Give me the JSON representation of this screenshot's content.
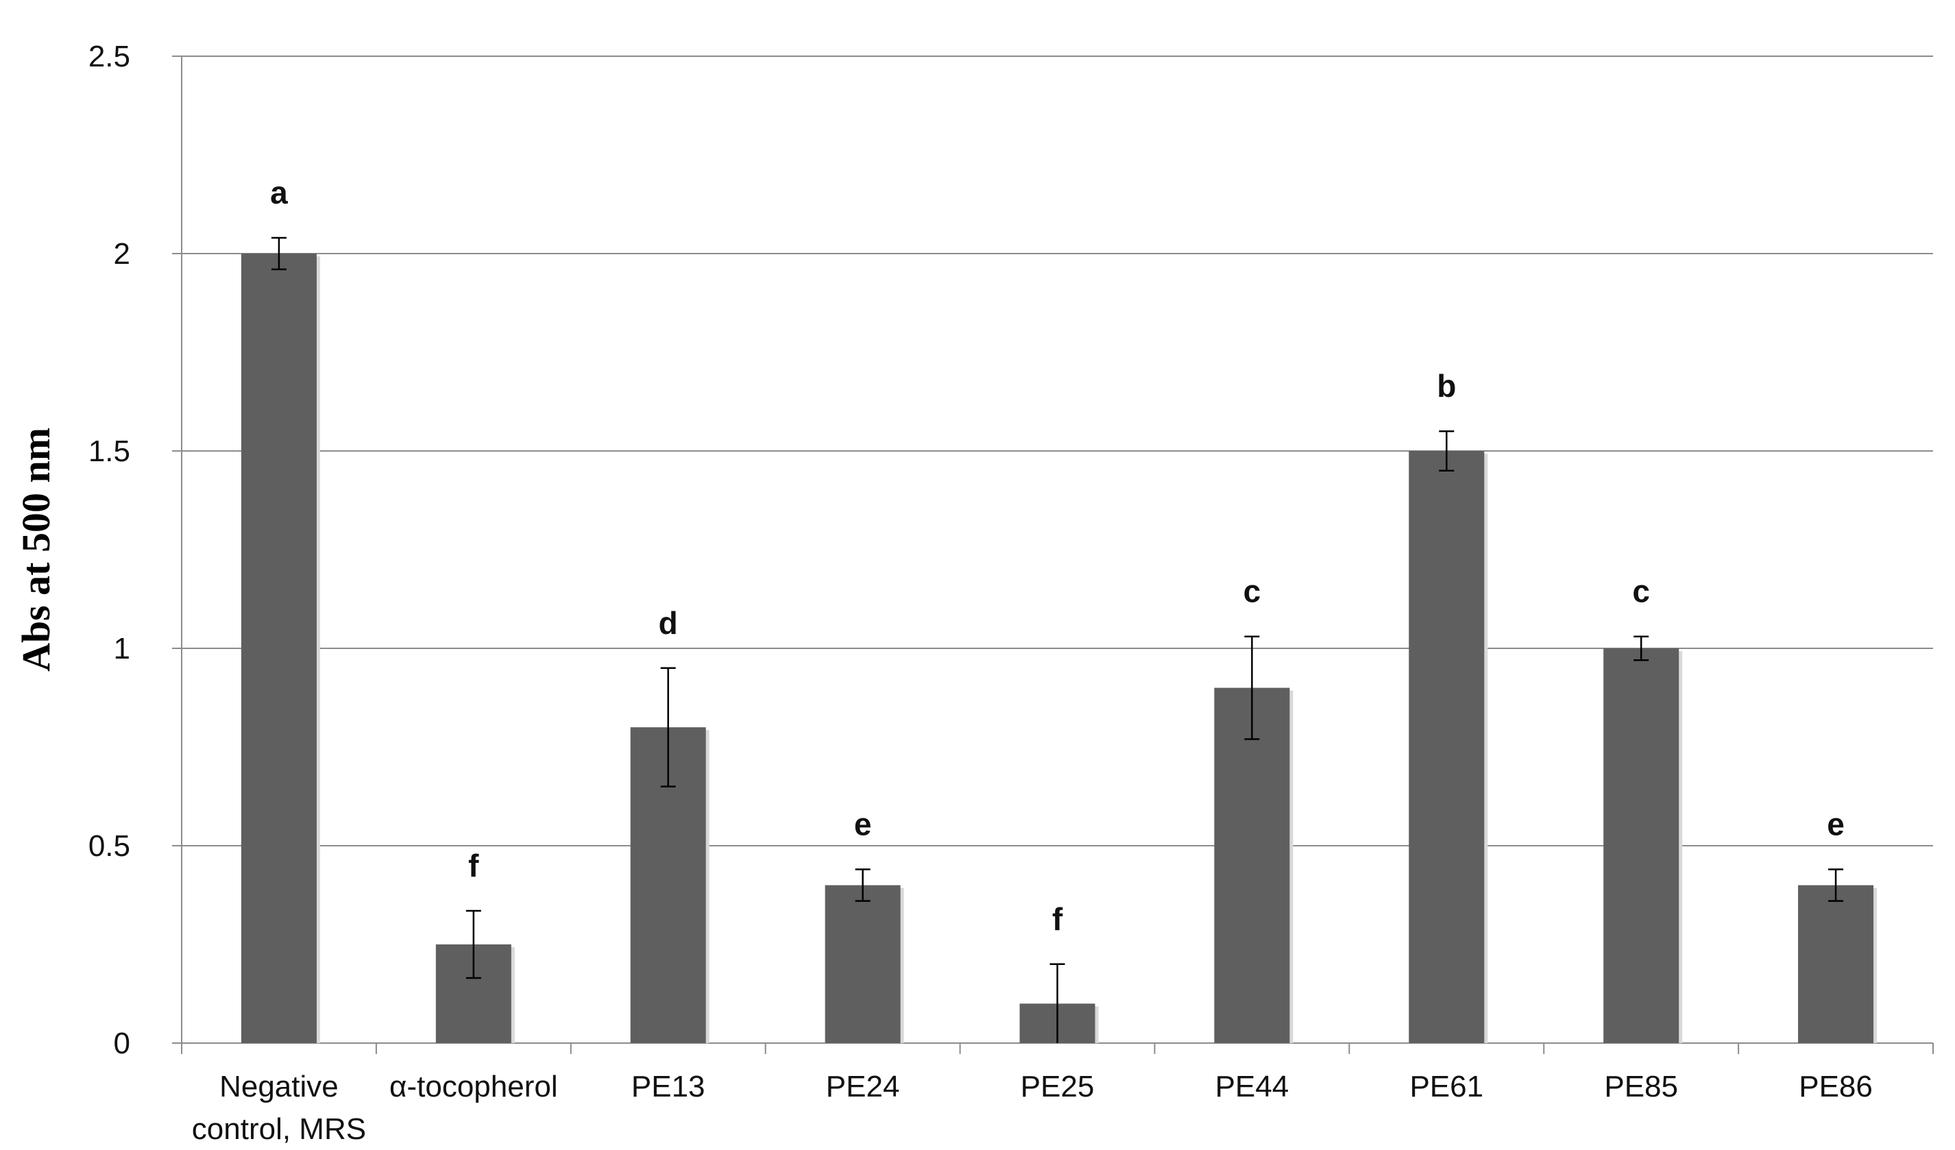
{
  "chart_data": {
    "type": "bar",
    "title": "",
    "xlabel": "",
    "ylabel": "Abs at 500 nm",
    "ylim": [
      0,
      2.5
    ],
    "yticks": [
      "0",
      "0.5",
      "1",
      "1.5",
      "2",
      "2.5"
    ],
    "grid": true,
    "legend": "none",
    "categories": [
      [
        "Negative",
        "control, MRS"
      ],
      [
        "α-tocopherol"
      ],
      [
        "PE13"
      ],
      [
        "PE24"
      ],
      [
        "PE25"
      ],
      [
        "PE44"
      ],
      [
        "PE61"
      ],
      [
        "PE85"
      ],
      [
        "PE86"
      ]
    ],
    "series": [
      {
        "values": [
          2.0,
          0.25,
          0.8,
          0.4,
          0.1,
          0.9,
          1.5,
          1.0,
          0.4
        ],
        "errors": [
          0.04,
          0.085,
          0.15,
          0.04,
          0.1,
          0.13,
          0.05,
          0.03,
          0.04
        ],
        "color": "#5f5f5f"
      }
    ],
    "significance_letters": [
      "a",
      "f",
      "d",
      "e",
      "f",
      "c",
      "b",
      "c",
      "e"
    ]
  }
}
